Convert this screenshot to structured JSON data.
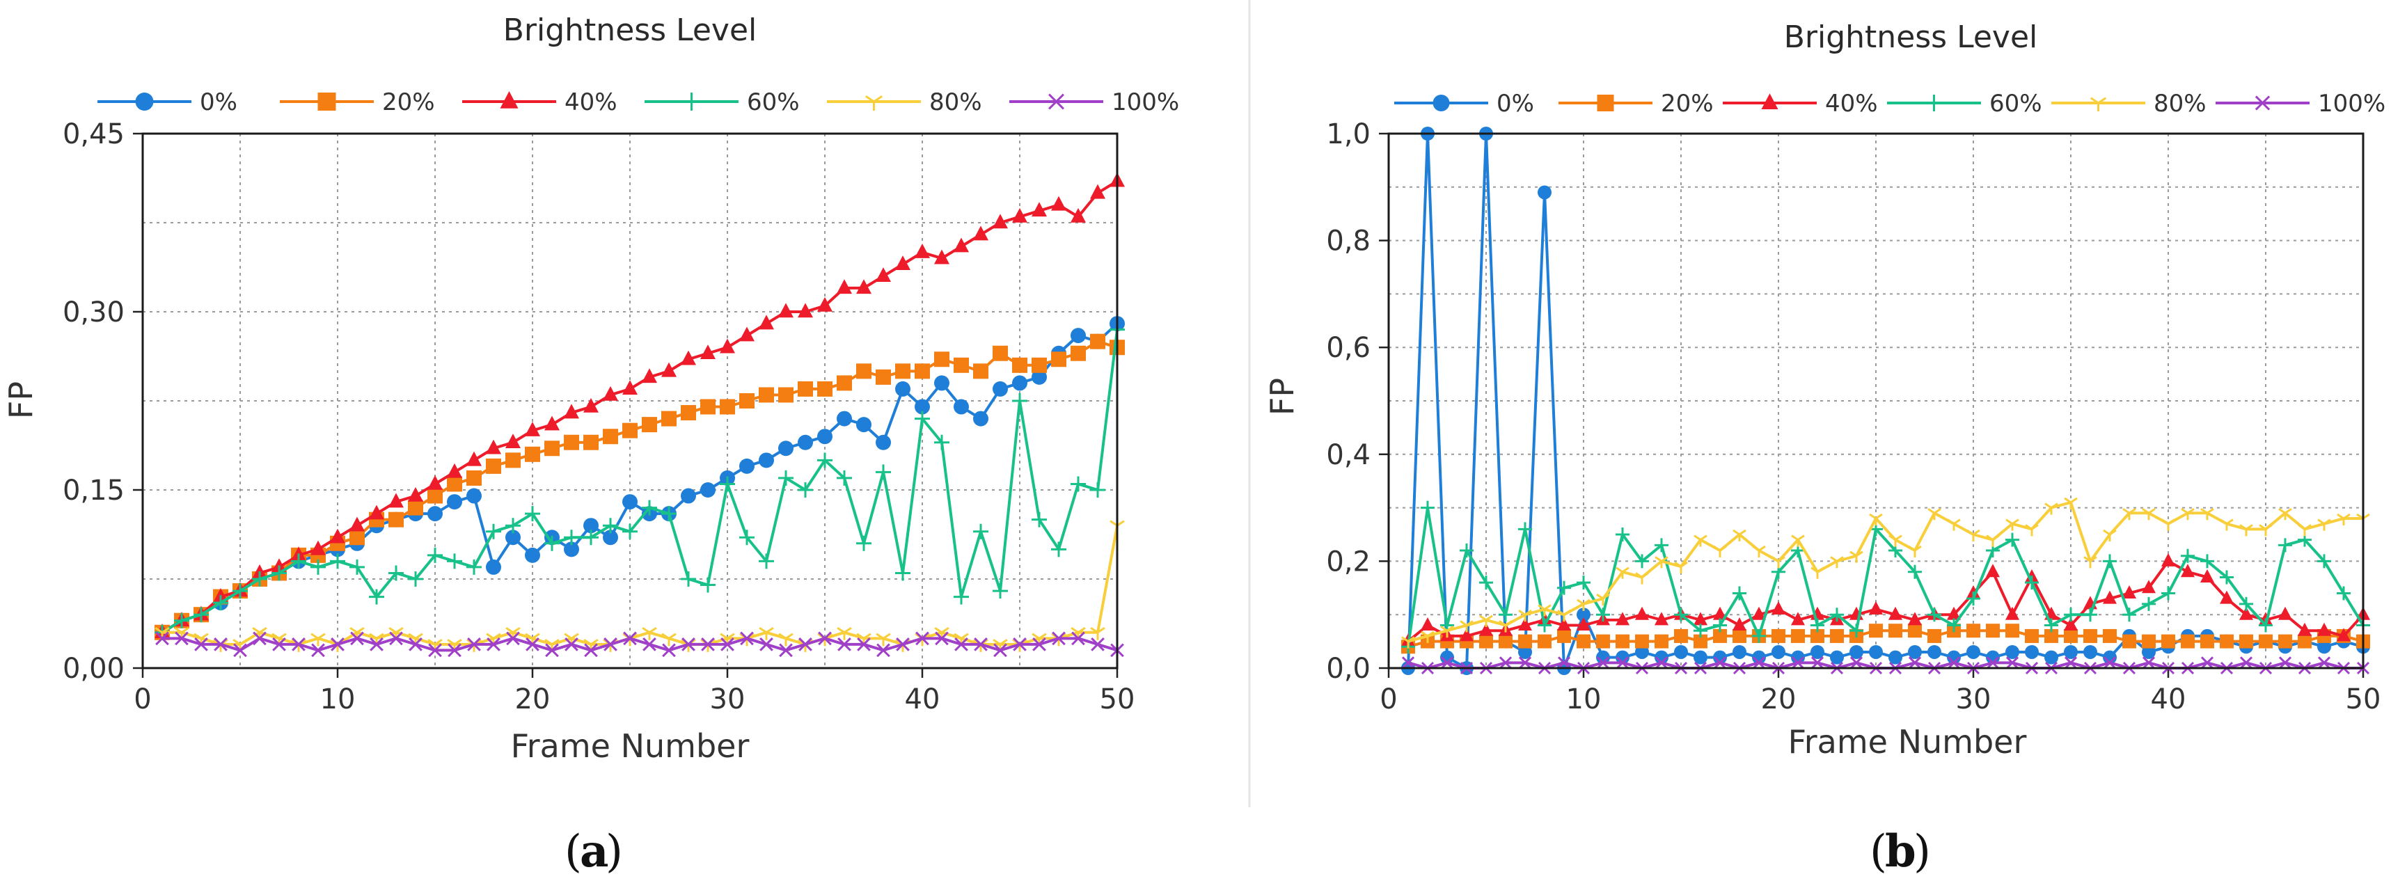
{
  "chart_data": [
    {
      "type": "line",
      "caption_label": "a",
      "title": "Brightness Level",
      "xlabel": "Frame Number",
      "ylabel": "FP",
      "xlim": [
        0,
        50
      ],
      "ylim": [
        0,
        0.45
      ],
      "x_ticks": [
        0,
        10,
        20,
        30,
        40,
        50
      ],
      "x_tick_labels": [
        "0",
        "10",
        "20",
        "30",
        "40",
        "50"
      ],
      "y_ticks": [
        0,
        0.15,
        0.3,
        0.45
      ],
      "y_tick_labels": [
        "0,00",
        "0,15",
        "0,30",
        "0,45"
      ],
      "grid": true,
      "legend_position": "top",
      "x": [
        1,
        2,
        3,
        4,
        5,
        6,
        7,
        8,
        9,
        10,
        11,
        12,
        13,
        14,
        15,
        16,
        17,
        18,
        19,
        20,
        21,
        22,
        23,
        24,
        25,
        26,
        27,
        28,
        29,
        30,
        31,
        32,
        33,
        34,
        35,
        36,
        37,
        38,
        39,
        40,
        41,
        42,
        43,
        44,
        45,
        46,
        47,
        48,
        49,
        50
      ],
      "series": [
        {
          "name": "0%",
          "color": "#1f7fd8",
          "marker": "circle",
          "values": [
            0.03,
            0.04,
            0.045,
            0.055,
            0.065,
            0.075,
            0.08,
            0.09,
            0.095,
            0.1,
            0.105,
            0.12,
            0.125,
            0.13,
            0.13,
            0.14,
            0.145,
            0.085,
            0.11,
            0.095,
            0.11,
            0.1,
            0.12,
            0.11,
            0.14,
            0.13,
            0.13,
            0.145,
            0.15,
            0.16,
            0.17,
            0.175,
            0.185,
            0.19,
            0.195,
            0.21,
            0.205,
            0.19,
            0.235,
            0.22,
            0.24,
            0.22,
            0.21,
            0.235,
            0.24,
            0.245,
            0.265,
            0.28,
            0.275,
            0.29
          ]
        },
        {
          "name": "20%",
          "color": "#f47e12",
          "marker": "square",
          "values": [
            0.03,
            0.04,
            0.045,
            0.06,
            0.065,
            0.075,
            0.08,
            0.095,
            0.095,
            0.105,
            0.11,
            0.125,
            0.125,
            0.135,
            0.145,
            0.155,
            0.16,
            0.17,
            0.175,
            0.18,
            0.185,
            0.19,
            0.19,
            0.195,
            0.2,
            0.205,
            0.21,
            0.215,
            0.22,
            0.22,
            0.225,
            0.23,
            0.23,
            0.235,
            0.235,
            0.24,
            0.25,
            0.245,
            0.25,
            0.25,
            0.26,
            0.255,
            0.25,
            0.265,
            0.255,
            0.255,
            0.26,
            0.265,
            0.275,
            0.27
          ]
        },
        {
          "name": "40%",
          "color": "#ee1c2a",
          "marker": "triangle",
          "values": [
            0.03,
            0.04,
            0.045,
            0.06,
            0.065,
            0.08,
            0.085,
            0.095,
            0.1,
            0.11,
            0.12,
            0.13,
            0.14,
            0.145,
            0.155,
            0.165,
            0.175,
            0.185,
            0.19,
            0.2,
            0.205,
            0.215,
            0.22,
            0.23,
            0.235,
            0.245,
            0.25,
            0.26,
            0.265,
            0.27,
            0.28,
            0.29,
            0.3,
            0.3,
            0.305,
            0.32,
            0.32,
            0.33,
            0.34,
            0.35,
            0.345,
            0.355,
            0.365,
            0.375,
            0.38,
            0.385,
            0.39,
            0.38,
            0.4,
            0.41
          ]
        },
        {
          "name": "60%",
          "color": "#18c08a",
          "marker": "plus",
          "values": [
            0.03,
            0.04,
            0.045,
            0.055,
            0.065,
            0.075,
            0.08,
            0.09,
            0.085,
            0.09,
            0.085,
            0.06,
            0.08,
            0.075,
            0.095,
            0.09,
            0.085,
            0.115,
            0.12,
            0.13,
            0.105,
            0.11,
            0.11,
            0.12,
            0.115,
            0.135,
            0.13,
            0.075,
            0.07,
            0.155,
            0.11,
            0.09,
            0.16,
            0.15,
            0.175,
            0.16,
            0.105,
            0.165,
            0.08,
            0.21,
            0.19,
            0.06,
            0.115,
            0.065,
            0.225,
            0.125,
            0.1,
            0.155,
            0.15,
            0.285
          ]
        },
        {
          "name": "80%",
          "color": "#f8cf3a",
          "marker": "y",
          "values": [
            0.03,
            0.03,
            0.025,
            0.02,
            0.02,
            0.03,
            0.025,
            0.02,
            0.025,
            0.02,
            0.03,
            0.025,
            0.03,
            0.025,
            0.02,
            0.02,
            0.02,
            0.025,
            0.03,
            0.025,
            0.02,
            0.025,
            0.02,
            0.02,
            0.025,
            0.03,
            0.025,
            0.02,
            0.02,
            0.025,
            0.025,
            0.03,
            0.025,
            0.02,
            0.025,
            0.03,
            0.025,
            0.025,
            0.02,
            0.025,
            0.03,
            0.025,
            0.02,
            0.02,
            0.02,
            0.025,
            0.025,
            0.03,
            0.03,
            0.12
          ]
        },
        {
          "name": "100%",
          "color": "#a040c8",
          "marker": "x",
          "values": [
            0.025,
            0.025,
            0.02,
            0.02,
            0.015,
            0.025,
            0.02,
            0.02,
            0.015,
            0.02,
            0.025,
            0.02,
            0.025,
            0.02,
            0.015,
            0.015,
            0.02,
            0.02,
            0.025,
            0.02,
            0.015,
            0.02,
            0.015,
            0.02,
            0.025,
            0.02,
            0.015,
            0.02,
            0.02,
            0.02,
            0.025,
            0.02,
            0.015,
            0.02,
            0.025,
            0.02,
            0.02,
            0.015,
            0.02,
            0.025,
            0.025,
            0.02,
            0.02,
            0.015,
            0.02,
            0.02,
            0.025,
            0.025,
            0.02,
            0.015
          ]
        }
      ]
    },
    {
      "type": "line",
      "caption_label": "b",
      "title": "Brightness Level",
      "xlabel": "Frame Number",
      "ylabel": "FP",
      "xlim": [
        0,
        50
      ],
      "ylim": [
        0,
        1.0
      ],
      "x_ticks": [
        0,
        10,
        20,
        30,
        40,
        50
      ],
      "x_tick_labels": [
        "0",
        "10",
        "20",
        "30",
        "40",
        "50"
      ],
      "y_ticks": [
        0,
        0.2,
        0.4,
        0.6,
        0.8,
        1.0
      ],
      "y_tick_labels": [
        "0,0",
        "0,2",
        "0,4",
        "0,6",
        "0,8",
        "1,0"
      ],
      "grid": true,
      "legend_position": "top",
      "x": [
        1,
        2,
        3,
        4,
        5,
        6,
        7,
        8,
        9,
        10,
        11,
        12,
        13,
        14,
        15,
        16,
        17,
        18,
        19,
        20,
        21,
        22,
        23,
        24,
        25,
        26,
        27,
        28,
        29,
        30,
        31,
        32,
        33,
        34,
        35,
        36,
        37,
        38,
        39,
        40,
        41,
        42,
        43,
        44,
        45,
        46,
        47,
        48,
        49,
        50
      ],
      "series": [
        {
          "name": "0%",
          "color": "#1f7fd8",
          "marker": "circle",
          "values": [
            0.0,
            1.0,
            0.02,
            0.0,
            1.0,
            0.05,
            0.03,
            0.89,
            0.0,
            0.1,
            0.02,
            0.02,
            0.03,
            0.02,
            0.03,
            0.02,
            0.02,
            0.03,
            0.02,
            0.03,
            0.02,
            0.03,
            0.02,
            0.03,
            0.03,
            0.02,
            0.03,
            0.03,
            0.02,
            0.03,
            0.02,
            0.03,
            0.03,
            0.02,
            0.03,
            0.03,
            0.02,
            0.06,
            0.03,
            0.04,
            0.06,
            0.06,
            0.05,
            0.04,
            0.05,
            0.04,
            0.05,
            0.04,
            0.05,
            0.04
          ]
        },
        {
          "name": "20%",
          "color": "#f47e12",
          "marker": "square",
          "values": [
            0.04,
            0.05,
            0.05,
            0.05,
            0.05,
            0.05,
            0.05,
            0.05,
            0.06,
            0.05,
            0.05,
            0.05,
            0.05,
            0.05,
            0.06,
            0.05,
            0.06,
            0.06,
            0.06,
            0.06,
            0.06,
            0.06,
            0.06,
            0.06,
            0.07,
            0.07,
            0.07,
            0.06,
            0.07,
            0.07,
            0.07,
            0.07,
            0.06,
            0.06,
            0.06,
            0.06,
            0.06,
            0.05,
            0.05,
            0.05,
            0.05,
            0.05,
            0.05,
            0.05,
            0.05,
            0.05,
            0.05,
            0.06,
            0.06,
            0.05
          ]
        },
        {
          "name": "40%",
          "color": "#ee1c2a",
          "marker": "triangle",
          "values": [
            0.05,
            0.08,
            0.06,
            0.06,
            0.07,
            0.07,
            0.08,
            0.09,
            0.08,
            0.08,
            0.09,
            0.09,
            0.1,
            0.09,
            0.1,
            0.09,
            0.1,
            0.08,
            0.1,
            0.11,
            0.09,
            0.1,
            0.09,
            0.1,
            0.11,
            0.1,
            0.09,
            0.1,
            0.1,
            0.14,
            0.18,
            0.1,
            0.17,
            0.1,
            0.08,
            0.12,
            0.13,
            0.14,
            0.15,
            0.2,
            0.18,
            0.17,
            0.13,
            0.1,
            0.09,
            0.1,
            0.07,
            0.07,
            0.06,
            0.1
          ]
        },
        {
          "name": "60%",
          "color": "#18c08a",
          "marker": "plus",
          "values": [
            0.04,
            0.3,
            0.08,
            0.22,
            0.16,
            0.1,
            0.26,
            0.08,
            0.15,
            0.16,
            0.1,
            0.25,
            0.2,
            0.23,
            0.1,
            0.07,
            0.08,
            0.14,
            0.06,
            0.18,
            0.22,
            0.08,
            0.1,
            0.07,
            0.26,
            0.22,
            0.18,
            0.1,
            0.08,
            0.13,
            0.22,
            0.24,
            0.16,
            0.08,
            0.1,
            0.1,
            0.2,
            0.1,
            0.12,
            0.14,
            0.21,
            0.2,
            0.17,
            0.12,
            0.08,
            0.23,
            0.24,
            0.2,
            0.14,
            0.08
          ]
        },
        {
          "name": "80%",
          "color": "#f8cf3a",
          "marker": "y",
          "values": [
            0.05,
            0.06,
            0.07,
            0.08,
            0.09,
            0.08,
            0.1,
            0.11,
            0.1,
            0.12,
            0.13,
            0.18,
            0.17,
            0.2,
            0.19,
            0.24,
            0.22,
            0.25,
            0.22,
            0.2,
            0.24,
            0.18,
            0.2,
            0.21,
            0.28,
            0.24,
            0.22,
            0.29,
            0.27,
            0.25,
            0.24,
            0.27,
            0.26,
            0.3,
            0.31,
            0.2,
            0.25,
            0.29,
            0.29,
            0.27,
            0.29,
            0.29,
            0.27,
            0.26,
            0.26,
            0.29,
            0.26,
            0.27,
            0.28,
            0.28
          ]
        },
        {
          "name": "100%",
          "color": "#a040c8",
          "marker": "x",
          "values": [
            0.01,
            0.0,
            0.01,
            0.0,
            0.0,
            0.01,
            0.01,
            0.0,
            0.01,
            0.0,
            0.01,
            0.01,
            0.0,
            0.01,
            0.0,
            0.0,
            0.01,
            0.0,
            0.01,
            0.0,
            0.01,
            0.01,
            0.0,
            0.01,
            0.0,
            0.0,
            0.01,
            0.0,
            0.01,
            0.0,
            0.01,
            0.01,
            0.0,
            0.0,
            0.01,
            0.0,
            0.01,
            0.0,
            0.01,
            0.0,
            0.0,
            0.01,
            0.0,
            0.01,
            0.0,
            0.01,
            0.0,
            0.01,
            0.0,
            0.0
          ]
        }
      ]
    }
  ]
}
